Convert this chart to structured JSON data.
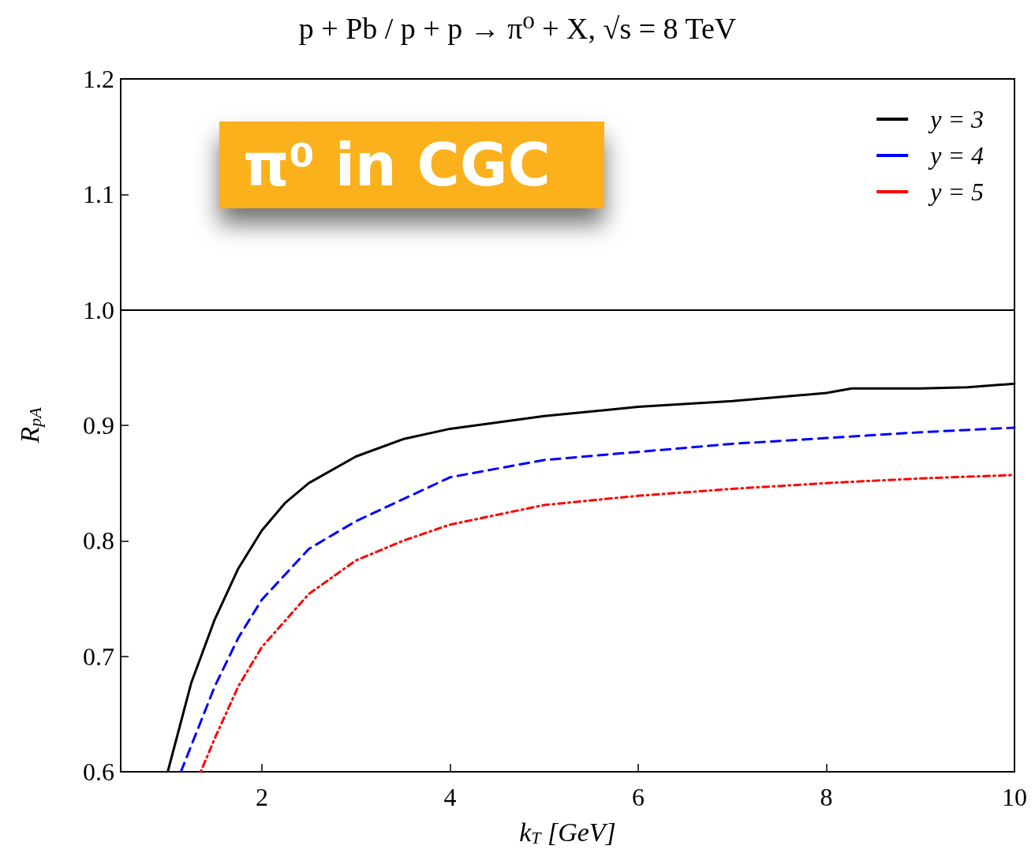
{
  "chart_data": {
    "type": "line",
    "title": "p + Pb / p + p → π⁰ + X, √s = 8 TeV",
    "xlabel": "k$_{T}$ [GeV]",
    "ylabel": "R$_{pA}$",
    "annotations": [
      "π⁰ in CGC"
    ],
    "xlim": [
      0.5,
      10
    ],
    "xticks": [
      2,
      4,
      6,
      8,
      10
    ],
    "ylim": [
      0.6,
      1.2
    ],
    "yticks": [
      0.6,
      0.7,
      0.8,
      0.9,
      {
        "value": 1,
        "label": "1.0"
      },
      1.1,
      1.2
    ],
    "grid": false,
    "legend": "top right",
    "marker": "none",
    "ref_lines": [
      {
        "axis": "y",
        "value": 1,
        "color": "#000000",
        "line_style": "solid"
      }
    ],
    "series": [
      {
        "name": "y = 3",
        "color": "#000000",
        "line_style": "solid",
        "x": [
          1.0,
          1.25,
          1.5,
          1.75,
          2,
          2.25,
          2.5,
          3,
          3.5,
          4,
          5,
          6,
          7,
          8,
          8.27,
          9,
          9.5,
          10
        ],
        "values": [
          0.6,
          0.677,
          0.732,
          0.776,
          0.809,
          0.833,
          0.85,
          0.873,
          0.888,
          0.897,
          0.908,
          0.916,
          0.921,
          0.928,
          0.932,
          0.932,
          0.933,
          0.936
        ]
      },
      {
        "name": "y = 4",
        "color": "#0000ff",
        "line_style": "dashed",
        "x": [
          1.14,
          1.5,
          1.75,
          2,
          2.5,
          3,
          3.5,
          4,
          5,
          6,
          7,
          8,
          9,
          10
        ],
        "values": [
          0.6,
          0.674,
          0.716,
          0.749,
          0.793,
          0.817,
          0.836,
          0.855,
          0.87,
          0.877,
          0.884,
          0.889,
          0.894,
          0.898
        ]
      },
      {
        "name": "y = 5",
        "color": "#ff0000",
        "line_style": "dotted",
        "x": [
          1.35,
          1.5,
          1.75,
          2,
          2.5,
          3,
          3.5,
          4,
          5,
          6,
          7,
          8,
          9,
          10
        ],
        "values": [
          0.6,
          0.629,
          0.674,
          0.708,
          0.754,
          0.783,
          0.8,
          0.814,
          0.831,
          0.839,
          0.845,
          0.85,
          0.854,
          0.857
        ]
      }
    ]
  }
}
